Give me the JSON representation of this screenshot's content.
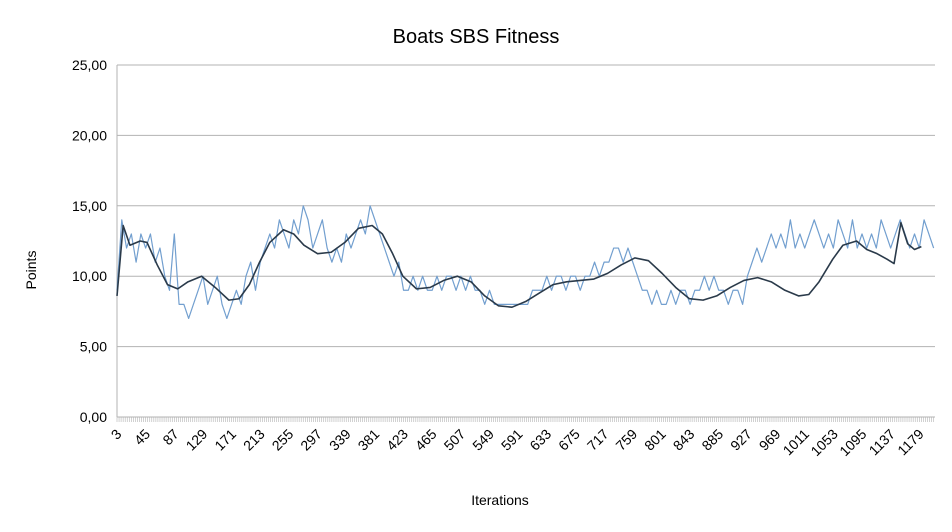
{
  "chart_data": {
    "type": "line",
    "title": "Boats SBS Fitness",
    "xlabel": "Iterations",
    "ylabel": "Points",
    "ylim": [
      0,
      25
    ],
    "y_ticks": [
      "0,00",
      "5,00",
      "10,00",
      "15,00",
      "20,00",
      "25,00"
    ],
    "x_tick_labels": [
      "3",
      "45",
      "87",
      "129",
      "171",
      "213",
      "255",
      "297",
      "339",
      "381",
      "423",
      "465",
      "507",
      "549",
      "591",
      "633",
      "675",
      "717",
      "759",
      "801",
      "843",
      "885",
      "927",
      "969",
      "1011",
      "1053",
      "1095",
      "1137",
      "1179"
    ],
    "x_range": [
      1,
      1200
    ],
    "grid": true,
    "legend": "none",
    "series": [
      {
        "kind": "raw",
        "color": "#729fcf",
        "points": [
          [
            1,
            9
          ],
          [
            8,
            14
          ],
          [
            15,
            12
          ],
          [
            22,
            13
          ],
          [
            29,
            11
          ],
          [
            36,
            13
          ],
          [
            43,
            12
          ],
          [
            50,
            13
          ],
          [
            57,
            11
          ],
          [
            64,
            12
          ],
          [
            71,
            10
          ],
          [
            78,
            9
          ],
          [
            85,
            13
          ],
          [
            92,
            8
          ],
          [
            99,
            8
          ],
          [
            106,
            7
          ],
          [
            113,
            8
          ],
          [
            120,
            9
          ],
          [
            127,
            10
          ],
          [
            134,
            8
          ],
          [
            141,
            9
          ],
          [
            148,
            10
          ],
          [
            155,
            8
          ],
          [
            162,
            7
          ],
          [
            169,
            8
          ],
          [
            176,
            9
          ],
          [
            183,
            8
          ],
          [
            190,
            10
          ],
          [
            197,
            11
          ],
          [
            204,
            9
          ],
          [
            211,
            11
          ],
          [
            218,
            12
          ],
          [
            225,
            13
          ],
          [
            232,
            12
          ],
          [
            239,
            14
          ],
          [
            246,
            13
          ],
          [
            253,
            12
          ],
          [
            260,
            14
          ],
          [
            267,
            13
          ],
          [
            274,
            15
          ],
          [
            281,
            14
          ],
          [
            288,
            12
          ],
          [
            295,
            13
          ],
          [
            302,
            14
          ],
          [
            309,
            12
          ],
          [
            316,
            11
          ],
          [
            323,
            12
          ],
          [
            330,
            11
          ],
          [
            337,
            13
          ],
          [
            344,
            12
          ],
          [
            351,
            13
          ],
          [
            358,
            14
          ],
          [
            365,
            13
          ],
          [
            372,
            15
          ],
          [
            379,
            14
          ],
          [
            386,
            13
          ],
          [
            393,
            12
          ],
          [
            400,
            11
          ],
          [
            407,
            10
          ],
          [
            414,
            11
          ],
          [
            421,
            9
          ],
          [
            428,
            9
          ],
          [
            435,
            10
          ],
          [
            442,
            9
          ],
          [
            449,
            10
          ],
          [
            456,
            9
          ],
          [
            463,
            9
          ],
          [
            470,
            10
          ],
          [
            477,
            9
          ],
          [
            484,
            10
          ],
          [
            491,
            10
          ],
          [
            498,
            9
          ],
          [
            505,
            10
          ],
          [
            512,
            9
          ],
          [
            519,
            10
          ],
          [
            526,
            9
          ],
          [
            533,
            9
          ],
          [
            540,
            8
          ],
          [
            547,
            9
          ],
          [
            554,
            8
          ],
          [
            561,
            8
          ],
          [
            568,
            8
          ],
          [
            575,
            8
          ],
          [
            582,
            8
          ],
          [
            589,
            8
          ],
          [
            596,
            8
          ],
          [
            603,
            8
          ],
          [
            610,
            9
          ],
          [
            617,
            9
          ],
          [
            624,
            9
          ],
          [
            631,
            10
          ],
          [
            638,
            9
          ],
          [
            645,
            10
          ],
          [
            652,
            10
          ],
          [
            659,
            9
          ],
          [
            666,
            10
          ],
          [
            673,
            10
          ],
          [
            680,
            9
          ],
          [
            687,
            10
          ],
          [
            694,
            10
          ],
          [
            701,
            11
          ],
          [
            708,
            10
          ],
          [
            715,
            11
          ],
          [
            722,
            11
          ],
          [
            729,
            12
          ],
          [
            736,
            12
          ],
          [
            743,
            11
          ],
          [
            750,
            12
          ],
          [
            757,
            11
          ],
          [
            764,
            10
          ],
          [
            771,
            9
          ],
          [
            778,
            9
          ],
          [
            785,
            8
          ],
          [
            792,
            9
          ],
          [
            799,
            8
          ],
          [
            806,
            8
          ],
          [
            813,
            9
          ],
          [
            820,
            8
          ],
          [
            827,
            9
          ],
          [
            834,
            9
          ],
          [
            841,
            8
          ],
          [
            848,
            9
          ],
          [
            855,
            9
          ],
          [
            862,
            10
          ],
          [
            869,
            9
          ],
          [
            876,
            10
          ],
          [
            883,
            9
          ],
          [
            890,
            9
          ],
          [
            897,
            8
          ],
          [
            904,
            9
          ],
          [
            911,
            9
          ],
          [
            918,
            8
          ],
          [
            925,
            10
          ],
          [
            932,
            11
          ],
          [
            939,
            12
          ],
          [
            946,
            11
          ],
          [
            953,
            12
          ],
          [
            960,
            13
          ],
          [
            967,
            12
          ],
          [
            974,
            13
          ],
          [
            981,
            12
          ],
          [
            988,
            14
          ],
          [
            995,
            12
          ],
          [
            1002,
            13
          ],
          [
            1009,
            12
          ],
          [
            1016,
            13
          ],
          [
            1023,
            14
          ],
          [
            1030,
            13
          ],
          [
            1037,
            12
          ],
          [
            1044,
            13
          ],
          [
            1051,
            12
          ],
          [
            1058,
            14
          ],
          [
            1065,
            13
          ],
          [
            1072,
            12
          ],
          [
            1079,
            14
          ],
          [
            1086,
            12
          ],
          [
            1093,
            13
          ],
          [
            1100,
            12
          ],
          [
            1107,
            13
          ],
          [
            1114,
            12
          ],
          [
            1121,
            14
          ],
          [
            1128,
            13
          ],
          [
            1135,
            12
          ],
          [
            1142,
            13
          ],
          [
            1149,
            14
          ],
          [
            1156,
            13
          ],
          [
            1163,
            12
          ],
          [
            1170,
            13
          ],
          [
            1177,
            12
          ],
          [
            1184,
            14
          ],
          [
            1191,
            13
          ],
          [
            1198,
            12
          ]
        ]
      },
      {
        "kind": "smoothed",
        "color": "#2a3a4a",
        "points": [
          [
            1,
            8.6
          ],
          [
            10,
            13.6
          ],
          [
            20,
            12.2
          ],
          [
            35,
            12.5
          ],
          [
            45,
            12.4
          ],
          [
            60,
            10.8
          ],
          [
            75,
            9.4
          ],
          [
            90,
            9.1
          ],
          [
            105,
            9.6
          ],
          [
            125,
            10.0
          ],
          [
            145,
            9.2
          ],
          [
            165,
            8.3
          ],
          [
            180,
            8.4
          ],
          [
            195,
            9.4
          ],
          [
            210,
            11.0
          ],
          [
            225,
            12.4
          ],
          [
            245,
            13.3
          ],
          [
            260,
            13.0
          ],
          [
            275,
            12.2
          ],
          [
            295,
            11.6
          ],
          [
            315,
            11.7
          ],
          [
            335,
            12.4
          ],
          [
            355,
            13.4
          ],
          [
            375,
            13.6
          ],
          [
            390,
            13.0
          ],
          [
            405,
            11.6
          ],
          [
            420,
            10.0
          ],
          [
            440,
            9.1
          ],
          [
            460,
            9.2
          ],
          [
            480,
            9.7
          ],
          [
            500,
            10.0
          ],
          [
            520,
            9.6
          ],
          [
            540,
            8.6
          ],
          [
            560,
            7.9
          ],
          [
            580,
            7.8
          ],
          [
            600,
            8.2
          ],
          [
            620,
            8.8
          ],
          [
            640,
            9.4
          ],
          [
            660,
            9.6
          ],
          [
            680,
            9.7
          ],
          [
            700,
            9.8
          ],
          [
            720,
            10.2
          ],
          [
            740,
            10.8
          ],
          [
            760,
            11.3
          ],
          [
            780,
            11.1
          ],
          [
            800,
            10.2
          ],
          [
            820,
            9.2
          ],
          [
            840,
            8.4
          ],
          [
            860,
            8.3
          ],
          [
            880,
            8.6
          ],
          [
            900,
            9.2
          ],
          [
            920,
            9.7
          ],
          [
            940,
            9.9
          ],
          [
            960,
            9.6
          ],
          [
            980,
            9.0
          ],
          [
            1000,
            8.6
          ],
          [
            1015,
            8.7
          ],
          [
            1030,
            9.6
          ],
          [
            1050,
            11.2
          ],
          [
            1065,
            12.2
          ],
          [
            1085,
            12.5
          ],
          [
            1100,
            11.9
          ],
          [
            1115,
            11.6
          ],
          [
            1130,
            11.2
          ],
          [
            1140,
            10.9
          ],
          [
            1150,
            13.8
          ],
          [
            1160,
            12.3
          ],
          [
            1170,
            11.9
          ],
          [
            1180,
            12.1
          ]
        ]
      }
    ]
  }
}
